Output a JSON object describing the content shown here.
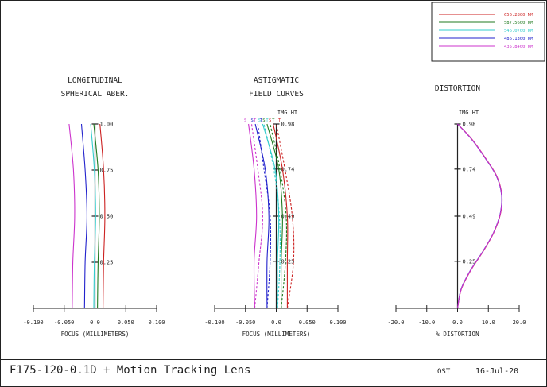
{
  "footer": {
    "title": "F175-120-0.1D + Motion Tracking Lens",
    "org": "OST",
    "date": "16-Jul-20"
  },
  "chart_data": [
    {
      "type": "line",
      "panel": "longitudinal",
      "title": [
        "LONGITUDINAL",
        "SPHERICAL ABER."
      ],
      "xlabel": "FOCUS (MILLIMETERS)",
      "xlim": [
        -0.1,
        0.1
      ],
      "xticks": [
        "-0.100",
        "-0.050",
        "0.0",
        "0.050",
        "0.100"
      ],
      "ylim": [
        0,
        1
      ],
      "yticks": [
        "0.25",
        "0.50",
        "0.75",
        "1.00"
      ],
      "series": [
        {
          "name": "656.2800 NM",
          "color": "#cc2222",
          "points": [
            [
              0.013,
              0
            ],
            [
              0.014,
              0.25
            ],
            [
              0.016,
              0.5
            ],
            [
              0.014,
              0.75
            ],
            [
              0.008,
              1.0
            ]
          ]
        },
        {
          "name": "587.5600 NM",
          "color": "#1f7a1f",
          "points": [
            [
              0.004,
              0
            ],
            [
              0.005,
              0.25
            ],
            [
              0.007,
              0.5
            ],
            [
              0.005,
              0.75
            ],
            [
              -0.002,
              1.0
            ]
          ]
        },
        {
          "name": "546.0700 NM",
          "color": "#33cccc",
          "points": [
            [
              -0.002,
              0
            ],
            [
              -0.001,
              0.25
            ],
            [
              0.001,
              0.5
            ],
            [
              -0.001,
              0.75
            ],
            [
              -0.007,
              1.0
            ]
          ]
        },
        {
          "name": "486.1300 NM",
          "color": "#2222cc",
          "points": [
            [
              -0.017,
              0
            ],
            [
              -0.016,
              0.25
            ],
            [
              -0.013,
              0.5
            ],
            [
              -0.016,
              0.75
            ],
            [
              -0.022,
              1.0
            ]
          ]
        },
        {
          "name": "435.8400 NM",
          "color": "#cc33cc",
          "points": [
            [
              -0.037,
              0
            ],
            [
              -0.036,
              0.25
            ],
            [
              -0.033,
              0.5
            ],
            [
              -0.035,
              0.75
            ],
            [
              -0.042,
              1.0
            ]
          ]
        }
      ]
    },
    {
      "type": "line",
      "panel": "astigmatic",
      "title": [
        "ASTIGMATIC",
        "FIELD CURVES"
      ],
      "xlabel": "FOCUS (MILLIMETERS)",
      "ylabel": "IMG HT",
      "xlim": [
        -0.1,
        0.1
      ],
      "xticks": [
        "-0.100",
        "-0.050",
        "0.0",
        "0.050",
        "0.100"
      ],
      "ylim": [
        0,
        0.98
      ],
      "yticks": [
        "0.25",
        "0.49",
        "0.74",
        "0.98"
      ],
      "curve_labels": {
        "sagittal": "S",
        "tangential": "T"
      },
      "series": [
        {
          "name": "656.2800 NM",
          "color": "#cc2222",
          "S": [
            [
              0.018,
              0
            ],
            [
              0.018,
              0.25
            ],
            [
              0.018,
              0.49
            ],
            [
              0.01,
              0.74
            ],
            [
              -0.005,
              0.98
            ]
          ],
          "T": [
            [
              0.018,
              0
            ],
            [
              0.028,
              0.25
            ],
            [
              0.026,
              0.49
            ],
            [
              0.014,
              0.74
            ],
            [
              0.0,
              0.98
            ]
          ]
        },
        {
          "name": "587.5600 NM",
          "color": "#1f7a1f",
          "S": [
            [
              0.008,
              0
            ],
            [
              0.008,
              0.25
            ],
            [
              0.01,
              0.49
            ],
            [
              0.004,
              0.74
            ],
            [
              -0.015,
              0.98
            ]
          ],
          "T": [
            [
              0.008,
              0
            ],
            [
              0.015,
              0.25
            ],
            [
              0.016,
              0.49
            ],
            [
              0.006,
              0.74
            ],
            [
              -0.01,
              0.98
            ]
          ]
        },
        {
          "name": "546.0700 NM",
          "color": "#33cccc",
          "S": [
            [
              0.002,
              0
            ],
            [
              0.002,
              0.25
            ],
            [
              0.004,
              0.49
            ],
            [
              -0.002,
              0.74
            ],
            [
              -0.022,
              0.98
            ]
          ],
          "T": [
            [
              0.002,
              0
            ],
            [
              0.006,
              0.25
            ],
            [
              0.005,
              0.49
            ],
            [
              -0.004,
              0.74
            ],
            [
              -0.02,
              0.98
            ]
          ]
        },
        {
          "name": "486.1300 NM",
          "color": "#2222cc",
          "S": [
            [
              -0.015,
              0
            ],
            [
              -0.015,
              0.25
            ],
            [
              -0.012,
              0.49
            ],
            [
              -0.018,
              0.74
            ],
            [
              -0.034,
              0.98
            ]
          ],
          "T": [
            [
              -0.015,
              0
            ],
            [
              -0.01,
              0.25
            ],
            [
              -0.01,
              0.49
            ],
            [
              -0.02,
              0.74
            ],
            [
              -0.03,
              0.98
            ]
          ]
        },
        {
          "name": "435.8400 NM",
          "color": "#cc33cc",
          "S": [
            [
              -0.035,
              0
            ],
            [
              -0.036,
              0.25
            ],
            [
              -0.032,
              0.49
            ],
            [
              -0.036,
              0.74
            ],
            [
              -0.045,
              0.98
            ]
          ],
          "T": [
            [
              -0.035,
              0
            ],
            [
              -0.028,
              0.25
            ],
            [
              -0.022,
              0.49
            ],
            [
              -0.03,
              0.74
            ],
            [
              -0.04,
              0.98
            ]
          ]
        }
      ]
    },
    {
      "type": "line",
      "panel": "distortion",
      "title": [
        "DISTORTION"
      ],
      "xlabel": "% DISTORTION",
      "ylabel": "IMG HT",
      "xlim": [
        -20,
        20
      ],
      "xticks": [
        "-20.0",
        "-10.0",
        "0.0",
        "10.0",
        "20.0"
      ],
      "ylim": [
        0,
        0.98
      ],
      "yticks": [
        "0.25",
        "0.49",
        "0.74",
        "0.98"
      ],
      "series": [
        {
          "name": "656.2800 NM",
          "color": "#cc2222",
          "points": [
            [
              0,
              0
            ],
            [
              1.2,
              0.1
            ],
            [
              4.2,
              0.2
            ],
            [
              8.2,
              0.3
            ],
            [
              11.7,
              0.4
            ],
            [
              13.9,
              0.5
            ],
            [
              14.4,
              0.6
            ],
            [
              12.8,
              0.7
            ],
            [
              9.0,
              0.8
            ],
            [
              4.6,
              0.9
            ],
            [
              0,
              0.98
            ]
          ]
        },
        {
          "name": "486.1300 NM",
          "color": "#2222cc",
          "points": [
            [
              0,
              0
            ],
            [
              1.1,
              0.1
            ],
            [
              4.1,
              0.2
            ],
            [
              8.1,
              0.3
            ],
            [
              11.6,
              0.4
            ],
            [
              13.8,
              0.5
            ],
            [
              14.3,
              0.6
            ],
            [
              12.7,
              0.7
            ],
            [
              8.9,
              0.8
            ],
            [
              4.5,
              0.9
            ],
            [
              0,
              0.98
            ]
          ]
        },
        {
          "name": "435.8400 NM",
          "color": "#cc33cc",
          "points": [
            [
              0,
              0
            ],
            [
              1.15,
              0.1
            ],
            [
              4.15,
              0.2
            ],
            [
              8.15,
              0.3
            ],
            [
              11.65,
              0.4
            ],
            [
              13.85,
              0.5
            ],
            [
              14.35,
              0.6
            ],
            [
              12.75,
              0.7
            ],
            [
              8.95,
              0.8
            ],
            [
              4.55,
              0.9
            ],
            [
              0,
              0.98
            ]
          ]
        }
      ]
    }
  ],
  "legend": [
    {
      "label": "656.2800 NM",
      "color": "#cc2222"
    },
    {
      "label": "587.5600 NM",
      "color": "#1f7a1f"
    },
    {
      "label": "546.0700 NM",
      "color": "#33cccc"
    },
    {
      "label": "486.1300 NM",
      "color": "#2222cc"
    },
    {
      "label": "435.8400 NM",
      "color": "#cc33cc"
    }
  ]
}
